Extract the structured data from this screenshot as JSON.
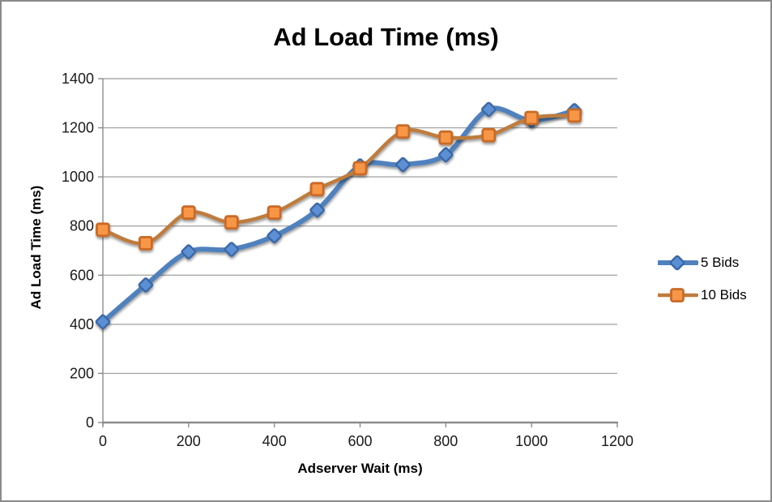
{
  "chart_data": {
    "type": "line",
    "title": "Ad Load Time (ms)",
    "xlabel": "Adserver Wait (ms)",
    "ylabel": "Ad Load Time (ms)",
    "x": [
      0,
      100,
      200,
      300,
      400,
      500,
      600,
      700,
      800,
      900,
      1000,
      1100
    ],
    "xlim": [
      0,
      1200
    ],
    "ylim": [
      0,
      1400
    ],
    "x_ticks": [
      0,
      200,
      400,
      600,
      800,
      1000,
      1200
    ],
    "y_ticks": [
      0,
      200,
      400,
      600,
      800,
      1000,
      1200,
      1400
    ],
    "grid": "horizontal-major",
    "smooth_lines": true,
    "legend_position": "right",
    "series": [
      {
        "name": "5 Bids",
        "marker": "diamond",
        "line_color": "#4F81BD",
        "line_width": 6,
        "marker_fill": "#5B8FD4",
        "marker_stroke": "#3A67A5",
        "values": [
          410,
          560,
          695,
          705,
          760,
          865,
          1045,
          1050,
          1090,
          1275,
          1230,
          1270
        ]
      },
      {
        "name": "10 Bids",
        "marker": "square",
        "line_color": "#BE7B3E",
        "line_width": 4.5,
        "marker_fill": "#F79646",
        "marker_stroke": "#C96A28",
        "values": [
          785,
          730,
          855,
          815,
          855,
          950,
          1035,
          1185,
          1160,
          1170,
          1240,
          1250
        ]
      }
    ],
    "colors": {
      "gridline": "#A8A8A8",
      "axis": "#8C8C8C",
      "text": "#1A1A1A",
      "background": "#FFFFFF",
      "frame_border": "#8A8A8A"
    }
  }
}
